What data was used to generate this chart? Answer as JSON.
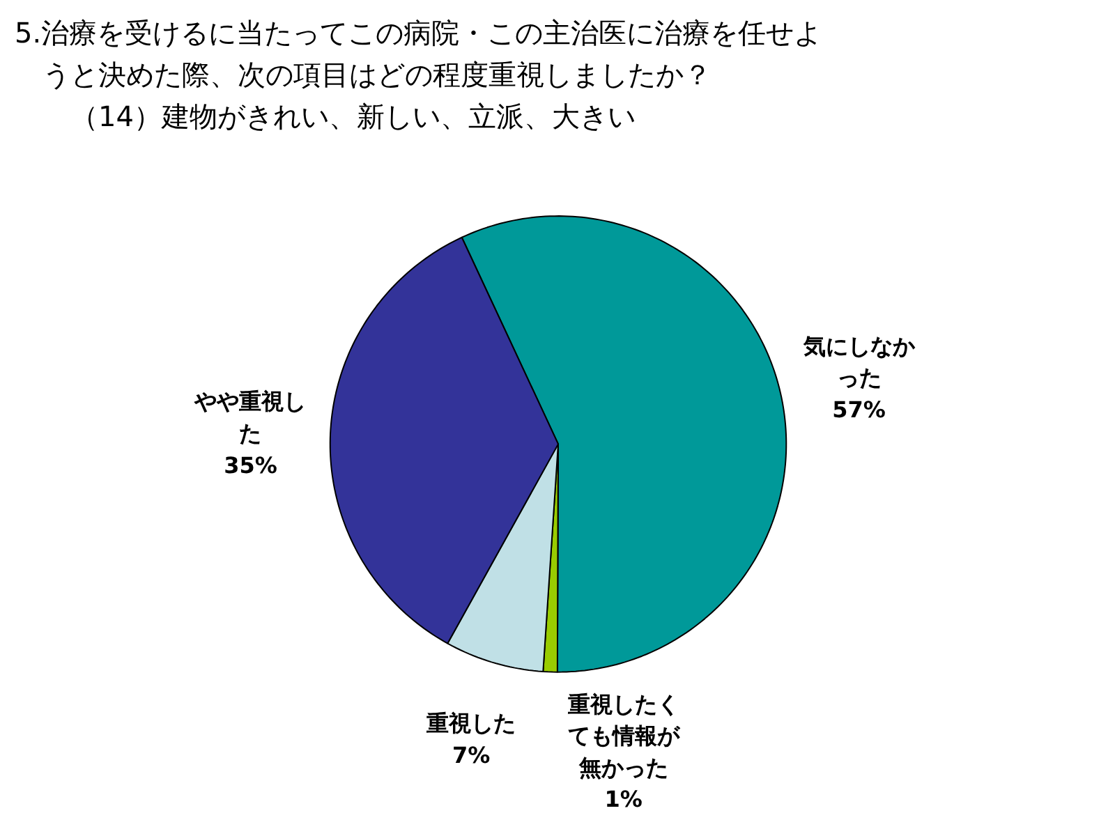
{
  "chart_data": {
    "type": "pie",
    "title": "5.治療を受けるに当たってこの病院・この主治医に治療を任せようと決めた際、次の項目はどの程度重視しましたか？",
    "subtitle": "（14）建物がきれい、新しい、立派、大きい",
    "categories": [
      "気にしなかった",
      "重視したくても情報が無かった",
      "重視した",
      "やや重視した"
    ],
    "values": [
      57,
      1,
      7,
      35
    ],
    "colors": [
      "#009999",
      "#99cc00",
      "#c0e0e6",
      "#333399"
    ],
    "value_labels": [
      "57%",
      "1%",
      "7%",
      "35%"
    ]
  }
}
